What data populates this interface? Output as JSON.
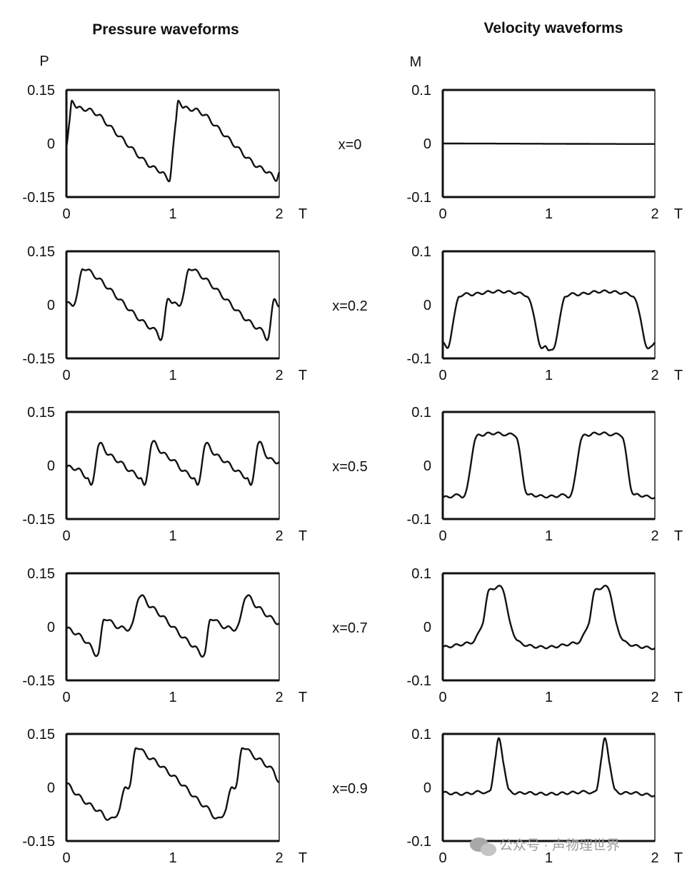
{
  "titles": {
    "pressure": "Pressure waveforms",
    "velocity": "Velocity waveforms"
  },
  "axis_symbols": {
    "pressure_y": "P",
    "velocity_y": "M",
    "x": "T"
  },
  "watermark": "公众号 · 声物理世界",
  "watermark_icon": "wechat-icon",
  "colors": {
    "ink": "#111111",
    "background": "#ffffff",
    "watermark": "#9a9a9a"
  },
  "chart_data": [
    {
      "type": "line",
      "panel": "pressure",
      "row_label": "x=0",
      "xlabel": "T",
      "ylabel": "P",
      "xlim": [
        0,
        2
      ],
      "ylim": [
        -0.15,
        0.15
      ],
      "xticks": [
        "0",
        "1",
        "2"
      ],
      "yticks": [
        "0.15",
        "0",
        "-0.15"
      ],
      "series": [
        {
          "values": [
            [
              0,
              -0.01
            ],
            [
              0.03,
              0.06
            ],
            [
              0.05,
              0.12
            ],
            [
              0.1,
              0.1
            ],
            [
              0.2,
              0.095
            ],
            [
              0.3,
              0.08
            ],
            [
              0.4,
              0.05
            ],
            [
              0.5,
              0.02
            ],
            [
              0.6,
              -0.01
            ],
            [
              0.7,
              -0.04
            ],
            [
              0.8,
              -0.065
            ],
            [
              0.9,
              -0.08
            ],
            [
              0.97,
              -0.1
            ],
            [
              1.0,
              -0.02
            ],
            [
              1.03,
              0.06
            ],
            [
              1.05,
              0.12
            ],
            [
              1.1,
              0.1
            ],
            [
              1.2,
              0.095
            ],
            [
              1.3,
              0.08
            ],
            [
              1.4,
              0.05
            ],
            [
              1.5,
              0.02
            ],
            [
              1.6,
              -0.01
            ],
            [
              1.7,
              -0.04
            ],
            [
              1.8,
              -0.065
            ],
            [
              1.9,
              -0.08
            ],
            [
              1.97,
              -0.1
            ],
            [
              2.0,
              -0.08
            ]
          ]
        }
      ]
    },
    {
      "type": "line",
      "panel": "velocity",
      "row_label": "x=0",
      "xlabel": "T",
      "ylabel": "M",
      "xlim": [
        0,
        2
      ],
      "ylim": [
        -0.1,
        0.1
      ],
      "xticks": [
        "0",
        "1",
        "2"
      ],
      "yticks": [
        "0.1",
        "0",
        "-0.1"
      ],
      "series": [
        {
          "values": [
            [
              0,
              0
            ],
            [
              2,
              -0.001
            ]
          ]
        }
      ]
    },
    {
      "type": "line",
      "panel": "pressure",
      "row_label": "x=0.2",
      "xlabel": "T",
      "ylabel": "P",
      "xlim": [
        0,
        2
      ],
      "ylim": [
        -0.15,
        0.15
      ],
      "xticks": [
        "0",
        "1",
        "2"
      ],
      "yticks": [
        "0.15",
        "0",
        "-0.15"
      ],
      "series": [
        {
          "values": [
            [
              0,
              0.005
            ],
            [
              0.06,
              0
            ],
            [
              0.1,
              0.03
            ],
            [
              0.15,
              0.1
            ],
            [
              0.25,
              0.085
            ],
            [
              0.35,
              0.06
            ],
            [
              0.45,
              0.03
            ],
            [
              0.55,
              0
            ],
            [
              0.65,
              -0.03
            ],
            [
              0.75,
              -0.055
            ],
            [
              0.85,
              -0.075
            ],
            [
              0.9,
              -0.09
            ],
            [
              0.95,
              0.015
            ],
            [
              1.0,
              0.005
            ],
            [
              1.06,
              0
            ],
            [
              1.1,
              0.03
            ],
            [
              1.15,
              0.1
            ],
            [
              1.25,
              0.085
            ],
            [
              1.35,
              0.06
            ],
            [
              1.45,
              0.03
            ],
            [
              1.55,
              0
            ],
            [
              1.65,
              -0.03
            ],
            [
              1.75,
              -0.055
            ],
            [
              1.85,
              -0.075
            ],
            [
              1.9,
              -0.09
            ],
            [
              1.95,
              0.015
            ],
            [
              2.0,
              -0.005
            ]
          ]
        }
      ]
    },
    {
      "type": "line",
      "panel": "velocity",
      "row_label": "x=0.2",
      "xlabel": "T",
      "ylabel": "M",
      "xlim": [
        0,
        2
      ],
      "ylim": [
        -0.1,
        0.1
      ],
      "xticks": [
        "0",
        "1",
        "2"
      ],
      "yticks": [
        "0.1",
        "0",
        "-0.1"
      ],
      "series": [
        {
          "values": [
            [
              0,
              -0.07
            ],
            [
              0.05,
              -0.08
            ],
            [
              0.1,
              -0.03
            ],
            [
              0.15,
              0.015
            ],
            [
              0.3,
              0.02
            ],
            [
              0.5,
              0.025
            ],
            [
              0.7,
              0.022
            ],
            [
              0.8,
              0.015
            ],
            [
              0.86,
              -0.02
            ],
            [
              0.92,
              -0.08
            ],
            [
              0.97,
              -0.075
            ],
            [
              1.0,
              -0.085
            ],
            [
              1.05,
              -0.08
            ],
            [
              1.1,
              -0.03
            ],
            [
              1.15,
              0.015
            ],
            [
              1.3,
              0.02
            ],
            [
              1.5,
              0.025
            ],
            [
              1.7,
              0.022
            ],
            [
              1.8,
              0.015
            ],
            [
              1.86,
              -0.02
            ],
            [
              1.92,
              -0.08
            ],
            [
              1.97,
              -0.075
            ],
            [
              2.0,
              -0.07
            ]
          ]
        }
      ]
    },
    {
      "type": "line",
      "panel": "pressure",
      "row_label": "x=0.5",
      "xlabel": "T",
      "ylabel": "P",
      "xlim": [
        0,
        2
      ],
      "ylim": [
        -0.15,
        0.15
      ],
      "xticks": [
        "0",
        "1",
        "2"
      ],
      "yticks": [
        "0.15",
        "0",
        "-0.15"
      ],
      "series": [
        {
          "values": [
            [
              0,
              -0.005
            ],
            [
              0.1,
              -0.01
            ],
            [
              0.2,
              -0.035
            ],
            [
              0.24,
              -0.055
            ],
            [
              0.3,
              0.055
            ],
            [
              0.4,
              0.03
            ],
            [
              0.5,
              0.01
            ],
            [
              0.6,
              -0.015
            ],
            [
              0.7,
              -0.035
            ],
            [
              0.74,
              -0.055
            ],
            [
              0.8,
              0.06
            ],
            [
              0.9,
              0.035
            ],
            [
              1.0,
              0.015
            ],
            [
              1.1,
              -0.015
            ],
            [
              1.2,
              -0.035
            ],
            [
              1.24,
              -0.055
            ],
            [
              1.3,
              0.055
            ],
            [
              1.4,
              0.03
            ],
            [
              1.5,
              0.01
            ],
            [
              1.6,
              -0.015
            ],
            [
              1.7,
              -0.035
            ],
            [
              1.74,
              -0.055
            ],
            [
              1.8,
              0.06
            ],
            [
              1.9,
              0.02
            ],
            [
              2.0,
              0.01
            ]
          ]
        }
      ]
    },
    {
      "type": "line",
      "panel": "velocity",
      "row_label": "x=0.5",
      "xlabel": "T",
      "ylabel": "M",
      "xlim": [
        0,
        2
      ],
      "ylim": [
        -0.1,
        0.1
      ],
      "xticks": [
        "0",
        "1",
        "2"
      ],
      "yticks": [
        "0.1",
        "0",
        "-0.1"
      ],
      "series": [
        {
          "values": [
            [
              0,
              -0.06
            ],
            [
              0.15,
              -0.055
            ],
            [
              0.22,
              -0.05
            ],
            [
              0.3,
              0.045
            ],
            [
              0.4,
              0.058
            ],
            [
              0.5,
              0.06
            ],
            [
              0.6,
              0.057
            ],
            [
              0.7,
              0.05
            ],
            [
              0.78,
              -0.045
            ],
            [
              0.85,
              -0.055
            ],
            [
              1.0,
              -0.058
            ],
            [
              1.15,
              -0.055
            ],
            [
              1.22,
              -0.05
            ],
            [
              1.3,
              0.045
            ],
            [
              1.4,
              0.058
            ],
            [
              1.5,
              0.06
            ],
            [
              1.6,
              0.057
            ],
            [
              1.7,
              0.05
            ],
            [
              1.78,
              -0.045
            ],
            [
              1.85,
              -0.055
            ],
            [
              2.0,
              -0.06
            ]
          ]
        }
      ]
    },
    {
      "type": "line",
      "panel": "pressure",
      "row_label": "x=0.7",
      "xlabel": "T",
      "ylabel": "P",
      "xlim": [
        0,
        2
      ],
      "ylim": [
        -0.15,
        0.15
      ],
      "xticks": [
        "0",
        "1",
        "2"
      ],
      "yticks": [
        "0.15",
        "0",
        "-0.15"
      ],
      "series": [
        {
          "values": [
            [
              0,
              -0.005
            ],
            [
              0.1,
              -0.02
            ],
            [
              0.2,
              -0.045
            ],
            [
              0.3,
              -0.075
            ],
            [
              0.35,
              0.02
            ],
            [
              0.45,
              0.005
            ],
            [
              0.55,
              -0.005
            ],
            [
              0.62,
              0.005
            ],
            [
              0.68,
              0.085
            ],
            [
              0.78,
              0.06
            ],
            [
              0.9,
              0.03
            ],
            [
              1.0,
              0
            ],
            [
              1.1,
              -0.03
            ],
            [
              1.2,
              -0.055
            ],
            [
              1.3,
              -0.075
            ],
            [
              1.35,
              0.02
            ],
            [
              1.45,
              0.005
            ],
            [
              1.55,
              -0.005
            ],
            [
              1.62,
              0.005
            ],
            [
              1.68,
              0.085
            ],
            [
              1.78,
              0.06
            ],
            [
              1.9,
              0.03
            ],
            [
              2.0,
              0.01
            ]
          ]
        }
      ]
    },
    {
      "type": "line",
      "panel": "velocity",
      "row_label": "x=0.7",
      "xlabel": "T",
      "ylabel": "M",
      "xlim": [
        0,
        2
      ],
      "ylim": [
        -0.1,
        0.1
      ],
      "xticks": [
        "0",
        "1",
        "2"
      ],
      "yticks": [
        "0.1",
        "0",
        "-0.1"
      ],
      "series": [
        {
          "values": [
            [
              0,
              -0.038
            ],
            [
              0.2,
              -0.032
            ],
            [
              0.3,
              -0.025
            ],
            [
              0.38,
              0.01
            ],
            [
              0.43,
              0.065
            ],
            [
              0.5,
              0.072
            ],
            [
              0.57,
              0.07
            ],
            [
              0.63,
              0.01
            ],
            [
              0.7,
              -0.025
            ],
            [
              0.8,
              -0.035
            ],
            [
              1.0,
              -0.038
            ],
            [
              1.2,
              -0.032
            ],
            [
              1.3,
              -0.025
            ],
            [
              1.38,
              0.01
            ],
            [
              1.43,
              0.065
            ],
            [
              1.5,
              0.072
            ],
            [
              1.57,
              0.07
            ],
            [
              1.63,
              0.01
            ],
            [
              1.7,
              -0.025
            ],
            [
              1.8,
              -0.035
            ],
            [
              2.0,
              -0.04
            ]
          ]
        }
      ]
    },
    {
      "type": "line",
      "panel": "pressure",
      "row_label": "x=0.9",
      "xlabel": "T",
      "ylabel": "P",
      "xlim": [
        0,
        2
      ],
      "ylim": [
        -0.15,
        0.15
      ],
      "xticks": [
        "0",
        "1",
        "2"
      ],
      "yticks": [
        "0.15",
        "0",
        "-0.15"
      ],
      "series": [
        {
          "values": [
            [
              0,
              0.01
            ],
            [
              0.1,
              -0.02
            ],
            [
              0.2,
              -0.045
            ],
            [
              0.3,
              -0.065
            ],
            [
              0.42,
              -0.09
            ],
            [
              0.5,
              -0.06
            ],
            [
              0.55,
              0
            ],
            [
              0.6,
              0.01
            ],
            [
              0.65,
              0.11
            ],
            [
              0.75,
              0.09
            ],
            [
              0.85,
              0.07
            ],
            [
              0.95,
              0.045
            ],
            [
              1.05,
              0.02
            ],
            [
              1.15,
              -0.01
            ],
            [
              1.25,
              -0.04
            ],
            [
              1.35,
              -0.065
            ],
            [
              1.42,
              -0.09
            ],
            [
              1.5,
              -0.06
            ],
            [
              1.55,
              0
            ],
            [
              1.6,
              0.01
            ],
            [
              1.65,
              0.11
            ],
            [
              1.75,
              0.09
            ],
            [
              1.85,
              0.07
            ],
            [
              1.95,
              0.045
            ],
            [
              2.0,
              0.015
            ]
          ]
        }
      ]
    },
    {
      "type": "line",
      "panel": "velocity",
      "row_label": "x=0.9",
      "xlabel": "T",
      "ylabel": "M",
      "xlim": [
        0,
        2
      ],
      "ylim": [
        -0.1,
        0.1
      ],
      "xticks": [
        "0",
        "1",
        "2"
      ],
      "yticks": [
        "0.1",
        "0",
        "-0.1"
      ],
      "series": [
        {
          "values": [
            [
              0,
              -0.01
            ],
            [
              0.2,
              -0.012
            ],
            [
              0.35,
              -0.008
            ],
            [
              0.45,
              -0.005
            ],
            [
              0.5,
              0.06
            ],
            [
              0.53,
              0.09
            ],
            [
              0.57,
              0.05
            ],
            [
              0.62,
              -0.005
            ],
            [
              0.8,
              -0.01
            ],
            [
              1.0,
              -0.012
            ],
            [
              1.2,
              -0.01
            ],
            [
              1.35,
              -0.008
            ],
            [
              1.45,
              -0.005
            ],
            [
              1.5,
              0.06
            ],
            [
              1.53,
              0.09
            ],
            [
              1.57,
              0.05
            ],
            [
              1.62,
              -0.005
            ],
            [
              1.8,
              -0.01
            ],
            [
              2.0,
              -0.015
            ]
          ]
        }
      ]
    }
  ]
}
